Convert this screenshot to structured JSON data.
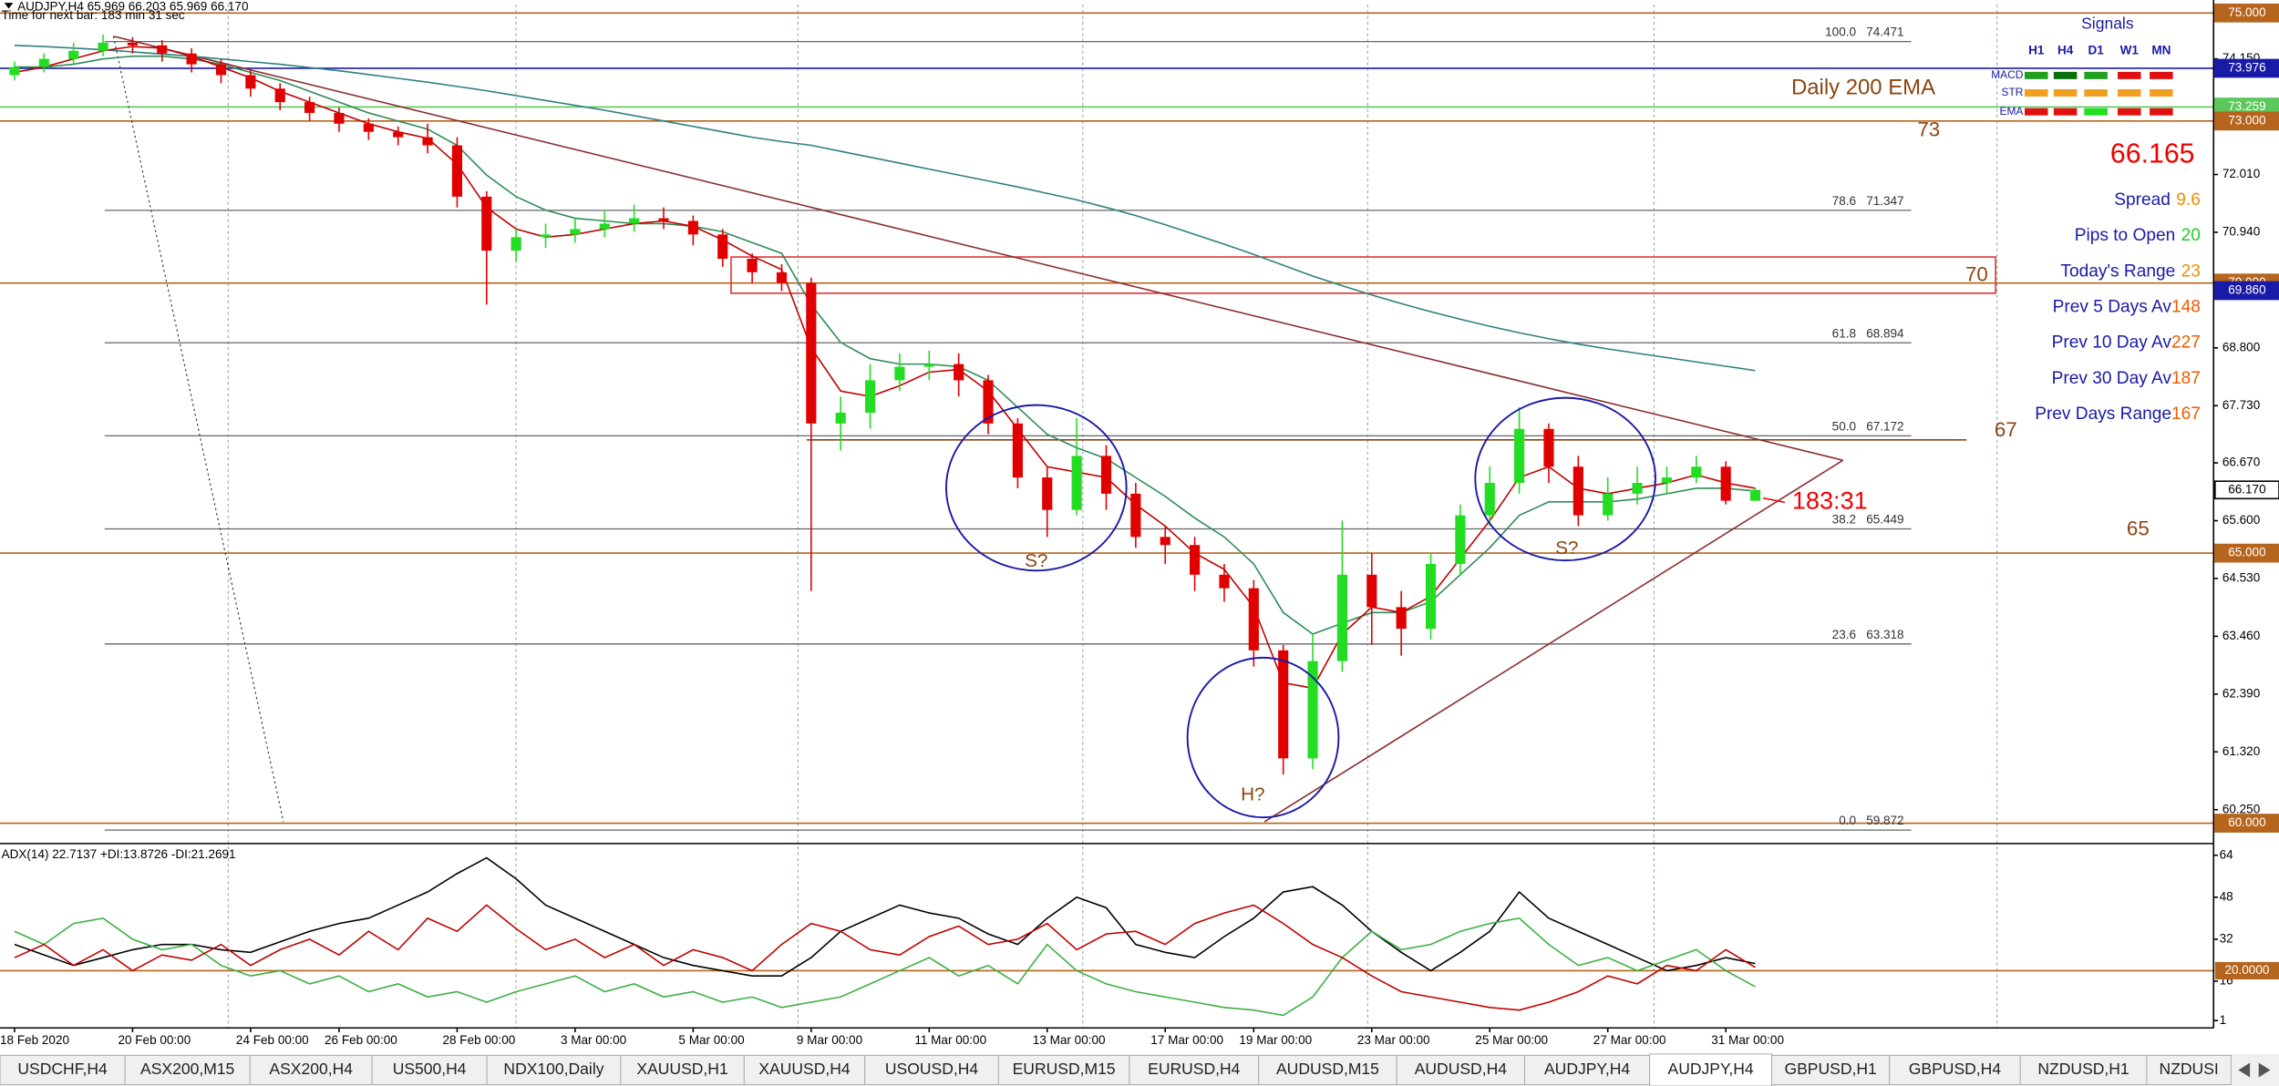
{
  "chart_data": [
    {
      "type": "candlestick",
      "title": "AUDJPY,H4 65.969 66.203 65.969 66.170",
      "subtitle": "Time for next bar: 183 min 31 sec",
      "categories": [
        "18 Feb 2020",
        null,
        null,
        null,
        "20 Feb 00:00",
        null,
        null,
        null,
        "24 Feb 00:00",
        null,
        null,
        "26 Feb 00:00",
        null,
        null,
        null,
        "28 Feb 00:00",
        null,
        null,
        null,
        "3 Mar 00:00",
        null,
        null,
        null,
        "5 Mar 00:00",
        null,
        null,
        null,
        "9 Mar 00:00",
        null,
        null,
        null,
        "11 Mar 00:00",
        null,
        null,
        null,
        "13 Mar 00:00",
        null,
        null,
        null,
        "17 Mar 00:00",
        null,
        null,
        "19 Mar 00:00",
        null,
        null,
        null,
        "23 Mar 00:00",
        null,
        null,
        null,
        "25 Mar 00:00",
        null,
        null,
        null,
        "27 Mar 00:00",
        null,
        null,
        null,
        "31 Mar 00:00",
        null
      ],
      "open": [
        73.85,
        74.0,
        74.15,
        74.3,
        74.45,
        74.4,
        74.25,
        74.05,
        73.85,
        73.6,
        73.35,
        73.15,
        72.95,
        72.8,
        72.7,
        72.55,
        71.6,
        70.6,
        70.85,
        70.9,
        71.0,
        71.1,
        71.2,
        71.15,
        70.9,
        70.45,
        70.2,
        70.0,
        67.4,
        67.6,
        68.2,
        68.45,
        68.5,
        68.2,
        67.4,
        66.4,
        65.8,
        66.8,
        66.1,
        65.3,
        65.15,
        64.6,
        64.35,
        63.2,
        61.2,
        63.0,
        64.6,
        64.0,
        63.6,
        64.8,
        65.7,
        66.3,
        67.3,
        66.6,
        65.7,
        66.1,
        66.3,
        66.4,
        66.6,
        65.969
      ],
      "high": [
        74.1,
        74.25,
        74.45,
        74.6,
        74.55,
        74.5,
        74.35,
        74.15,
        73.95,
        73.7,
        73.45,
        73.25,
        73.05,
        72.9,
        72.95,
        72.7,
        71.7,
        71.0,
        71.1,
        71.2,
        71.35,
        71.45,
        71.4,
        71.25,
        71.0,
        70.55,
        70.35,
        70.1,
        67.9,
        68.5,
        68.7,
        68.75,
        68.7,
        68.3,
        67.5,
        66.6,
        67.5,
        67.0,
        66.3,
        65.5,
        65.3,
        64.8,
        64.5,
        63.3,
        63.5,
        65.6,
        65.0,
        64.3,
        65.0,
        65.9,
        66.6,
        67.7,
        67.4,
        66.8,
        66.4,
        66.6,
        66.6,
        66.8,
        66.7,
        66.203
      ],
      "low": [
        73.75,
        73.9,
        74.05,
        74.2,
        74.25,
        74.1,
        73.9,
        73.7,
        73.45,
        73.2,
        73.0,
        72.8,
        72.65,
        72.55,
        72.4,
        71.4,
        69.6,
        70.4,
        70.65,
        70.75,
        70.85,
        70.95,
        71.0,
        70.7,
        70.3,
        70.0,
        69.85,
        64.3,
        66.9,
        67.3,
        68.0,
        68.2,
        67.9,
        67.2,
        66.2,
        65.3,
        65.7,
        65.8,
        65.1,
        64.8,
        64.3,
        64.1,
        62.9,
        60.9,
        61.0,
        62.8,
        63.3,
        63.1,
        63.4,
        64.6,
        65.5,
        66.1,
        66.3,
        65.5,
        65.6,
        65.9,
        66.1,
        66.3,
        65.9,
        65.969
      ],
      "close": [
        74.0,
        74.15,
        74.3,
        74.45,
        74.4,
        74.25,
        74.05,
        73.85,
        73.6,
        73.35,
        73.15,
        72.95,
        72.8,
        72.7,
        72.55,
        71.6,
        70.6,
        70.85,
        70.9,
        71.0,
        71.1,
        71.2,
        71.15,
        70.9,
        70.45,
        70.2,
        70.0,
        67.4,
        67.6,
        68.2,
        68.45,
        68.5,
        68.2,
        67.4,
        66.4,
        65.8,
        66.8,
        66.1,
        65.3,
        65.15,
        64.6,
        64.35,
        63.2,
        61.2,
        63.0,
        64.6,
        64.0,
        63.6,
        64.8,
        65.7,
        66.3,
        67.3,
        66.6,
        65.7,
        66.1,
        66.3,
        66.4,
        66.6,
        65.97,
        66.17
      ],
      "up_color": "#22dd22",
      "down_color": "#e00000",
      "series": [
        {
          "color": "#2f7f80",
          "values": [
            74.4,
            74.38,
            74.35,
            74.32,
            74.28,
            74.24,
            74.2,
            74.15,
            74.1,
            74.05,
            73.99,
            73.93,
            73.86,
            73.79,
            73.72,
            73.64,
            73.56,
            73.47,
            73.38,
            73.29,
            73.2,
            73.1,
            73.0,
            72.9,
            72.8,
            72.7,
            72.62,
            72.55,
            72.44,
            72.33,
            72.22,
            72.11,
            72.0,
            71.89,
            71.78,
            71.66,
            71.54,
            71.4,
            71.25,
            71.08,
            70.9,
            70.72,
            70.53,
            70.33,
            70.13,
            69.95,
            69.78,
            69.62,
            69.47,
            69.33,
            69.2,
            69.08,
            68.97,
            68.87,
            68.78,
            68.7,
            68.62,
            68.54,
            68.46,
            68.38
          ]
        },
        {
          "color": "#2e8b57",
          "values": [
            74.0,
            74.0,
            74.05,
            74.15,
            74.2,
            74.2,
            74.15,
            74.05,
            73.9,
            73.75,
            73.55,
            73.35,
            73.15,
            73.0,
            72.85,
            72.55,
            72.0,
            71.6,
            71.35,
            71.2,
            71.15,
            71.1,
            71.1,
            71.05,
            70.95,
            70.75,
            70.55,
            69.6,
            68.9,
            68.6,
            68.5,
            68.5,
            68.45,
            68.2,
            67.7,
            67.2,
            66.95,
            66.75,
            66.4,
            66.05,
            65.65,
            65.3,
            64.8,
            63.9,
            63.5,
            63.7,
            63.9,
            63.9,
            64.1,
            64.6,
            65.1,
            65.7,
            65.95,
            65.95,
            65.95,
            66.0,
            66.1,
            66.2,
            66.2,
            66.15
          ]
        },
        {
          "color": "#c00000",
          "values": [
            73.9,
            74.0,
            74.15,
            74.3,
            74.38,
            74.35,
            74.2,
            74.0,
            73.8,
            73.55,
            73.35,
            73.15,
            72.95,
            72.8,
            72.68,
            72.2,
            71.4,
            71.0,
            70.85,
            70.9,
            71.0,
            71.1,
            71.15,
            71.05,
            70.8,
            70.5,
            70.25,
            68.8,
            68.0,
            67.9,
            68.1,
            68.35,
            68.4,
            68.0,
            67.3,
            66.6,
            66.5,
            66.4,
            65.9,
            65.5,
            65.0,
            64.7,
            64.0,
            62.6,
            62.5,
            63.5,
            64.0,
            63.9,
            64.2,
            64.9,
            65.6,
            66.4,
            66.6,
            66.2,
            66.1,
            66.2,
            66.3,
            66.45,
            66.3,
            66.2
          ]
        }
      ],
      "ylim": [
        59.65,
        75.16
      ],
      "grid": false,
      "yticks": [
        {
          "value": 74.15,
          "label": "74.150"
        },
        {
          "value": 72.01,
          "label": "72.010"
        },
        {
          "value": 70.94,
          "label": "70.940"
        },
        {
          "value": 68.8,
          "label": "68.800"
        },
        {
          "value": 67.73,
          "label": "67.730"
        },
        {
          "value": 66.67,
          "label": "66.670"
        },
        {
          "value": 65.6,
          "label": "65.600"
        },
        {
          "value": 64.53,
          "label": "64.530"
        },
        {
          "value": 63.46,
          "label": "63.460"
        },
        {
          "value": 62.39,
          "label": "62.390"
        },
        {
          "value": 61.32,
          "label": "61.320"
        },
        {
          "value": 60.25,
          "label": "60.250"
        }
      ],
      "price_boxes": [
        {
          "value": 75,
          "label": "75.000",
          "color": "#b5651d",
          "line": true
        },
        {
          "value": 73.976,
          "label": "73.976",
          "color": "#1a1aa8",
          "line": true
        },
        {
          "value": 73.259,
          "label": "73.259",
          "color": "#5cc85c",
          "line": true
        },
        {
          "value": 73,
          "label": "73.000",
          "color": "#b5651d",
          "line": true
        },
        {
          "value": 70,
          "label": "70.000",
          "color": "#b5651d",
          "line": true
        },
        {
          "value": 69.86,
          "label": "69.860",
          "color": "#1a1aa8",
          "line": false
        },
        {
          "value": 66.17,
          "label": "66.170",
          "color": "#ffffff",
          "line": false
        },
        {
          "value": 65,
          "label": "65.000",
          "color": "#b5651d",
          "line": true
        },
        {
          "value": 60,
          "label": "60.000",
          "color": "#b5651d",
          "line": true
        }
      ],
      "fib_levels": [
        {
          "level": "100.0",
          "price": 74.471
        },
        {
          "level": "78.6",
          "price": 71.347
        },
        {
          "level": "61.8",
          "price": 68.894
        },
        {
          "level": "50.0",
          "price": 67.172
        },
        {
          "level": "38.2",
          "price": 65.449
        },
        {
          "level": "23.6",
          "price": 63.318
        },
        {
          "level": "0.0",
          "price": 59.872
        }
      ],
      "annotations": {
        "ema_label": "Daily 200 EMA",
        "level_73": 73,
        "level_70": 70,
        "level_67": 67,
        "level_65": 65,
        "shoulder_left": "S?",
        "head": "H?",
        "shoulder_right": "S?",
        "countdown": "183:31"
      }
    },
    {
      "type": "line",
      "title": "ADX(14) 22.7137 +DI:13.8726 -DI:21.2691",
      "series": [
        {
          "color": "#000000",
          "values": [
            30,
            26,
            22,
            25,
            28,
            30,
            30,
            28,
            27,
            31,
            35,
            38,
            40,
            45,
            50,
            57,
            63,
            55,
            45,
            40,
            35,
            30,
            25,
            22,
            20,
            18,
            18,
            25,
            35,
            40,
            45,
            42,
            40,
            34,
            30,
            40,
            48,
            44,
            30,
            27,
            25,
            33,
            40,
            50,
            52,
            45,
            35,
            27,
            20,
            27,
            35,
            50,
            40,
            35,
            30,
            25,
            20,
            22,
            25,
            22.7137
          ]
        },
        {
          "color": "#3cb043",
          "values": [
            35,
            30,
            38,
            40,
            32,
            28,
            30,
            22,
            18,
            20,
            15,
            18,
            12,
            15,
            10,
            12,
            8,
            12,
            15,
            18,
            12,
            15,
            10,
            12,
            8,
            10,
            6,
            8,
            10,
            15,
            20,
            25,
            18,
            22,
            15,
            30,
            20,
            15,
            12,
            10,
            8,
            6,
            5,
            3,
            10,
            25,
            35,
            28,
            30,
            35,
            38,
            40,
            30,
            22,
            25,
            20,
            24,
            28,
            20,
            13.8726
          ]
        },
        {
          "color": "#c00000",
          "values": [
            25,
            30,
            22,
            28,
            20,
            26,
            24,
            30,
            22,
            28,
            32,
            26,
            35,
            28,
            40,
            35,
            45,
            36,
            28,
            32,
            25,
            30,
            22,
            28,
            25,
            20,
            30,
            38,
            35,
            28,
            26,
            33,
            37,
            30,
            32,
            38,
            28,
            34,
            35,
            30,
            38,
            42,
            45,
            38,
            30,
            25,
            18,
            12,
            10,
            8,
            6,
            5,
            8,
            12,
            18,
            15,
            22,
            20,
            28,
            21.2691
          ]
        }
      ],
      "ylim": [
        -1.8,
        67.9
      ],
      "yticks": [
        64,
        48,
        32,
        16,
        1
      ],
      "level": {
        "value": 20,
        "label": "20.0000",
        "color": "#b5651d"
      }
    }
  ],
  "signals": {
    "title": "Signals",
    "columns": [
      "H1",
      "H4",
      "D1",
      "W1",
      "MN"
    ],
    "rows": [
      {
        "name": "MACD",
        "colors": [
          "#1fa01f",
          "#0a700a",
          "#1fa01f",
          "#e01010",
          "#e01010"
        ]
      },
      {
        "name": "STR",
        "colors": [
          "#f0a020",
          "#f0a020",
          "#f0a020",
          "#f0a020",
          "#f0a020"
        ]
      },
      {
        "name": "EMA",
        "colors": [
          "#e01010",
          "#e01010",
          "#20e020",
          "#e01010",
          "#e01010"
        ]
      }
    ]
  },
  "bid": 66.165,
  "stats": [
    {
      "label": "Spread",
      "value": 9.6,
      "color": "#f08c00"
    },
    {
      "label": "Pips to Open",
      "value": 20,
      "color": "#22cc22"
    },
    {
      "label": "Today's Range",
      "value": 23,
      "color": "#f08c00"
    },
    {
      "label": "Prev 5 Days Av",
      "value": 148,
      "color": "#f05a00"
    },
    {
      "label": "Prev 10 Day Av",
      "value": 227,
      "color": "#f05a00"
    },
    {
      "label": "Prev 30 Day Av",
      "value": 187,
      "color": "#f05a00"
    },
    {
      "label": "Prev Days Range",
      "value": 167,
      "color": "#f05a00"
    }
  ],
  "tabs": {
    "items": [
      "USDCHF,H4",
      "ASX200,M15",
      "ASX200,H4",
      "US500,H4",
      "NDX100,Daily",
      "XAUUSD,H1",
      "XAUUSD,H4",
      "USOUSD,H4",
      "EURUSD,M15",
      "EURUSD,H4",
      "AUDUSD,M15",
      "AUDUSD,H4",
      "AUDJPY,H4",
      "AUDJPY,H4",
      "GBPUSD,H1",
      "GBPUSD,H4",
      "NZDUSD,H1",
      "NZDUSI"
    ],
    "active": 13
  }
}
